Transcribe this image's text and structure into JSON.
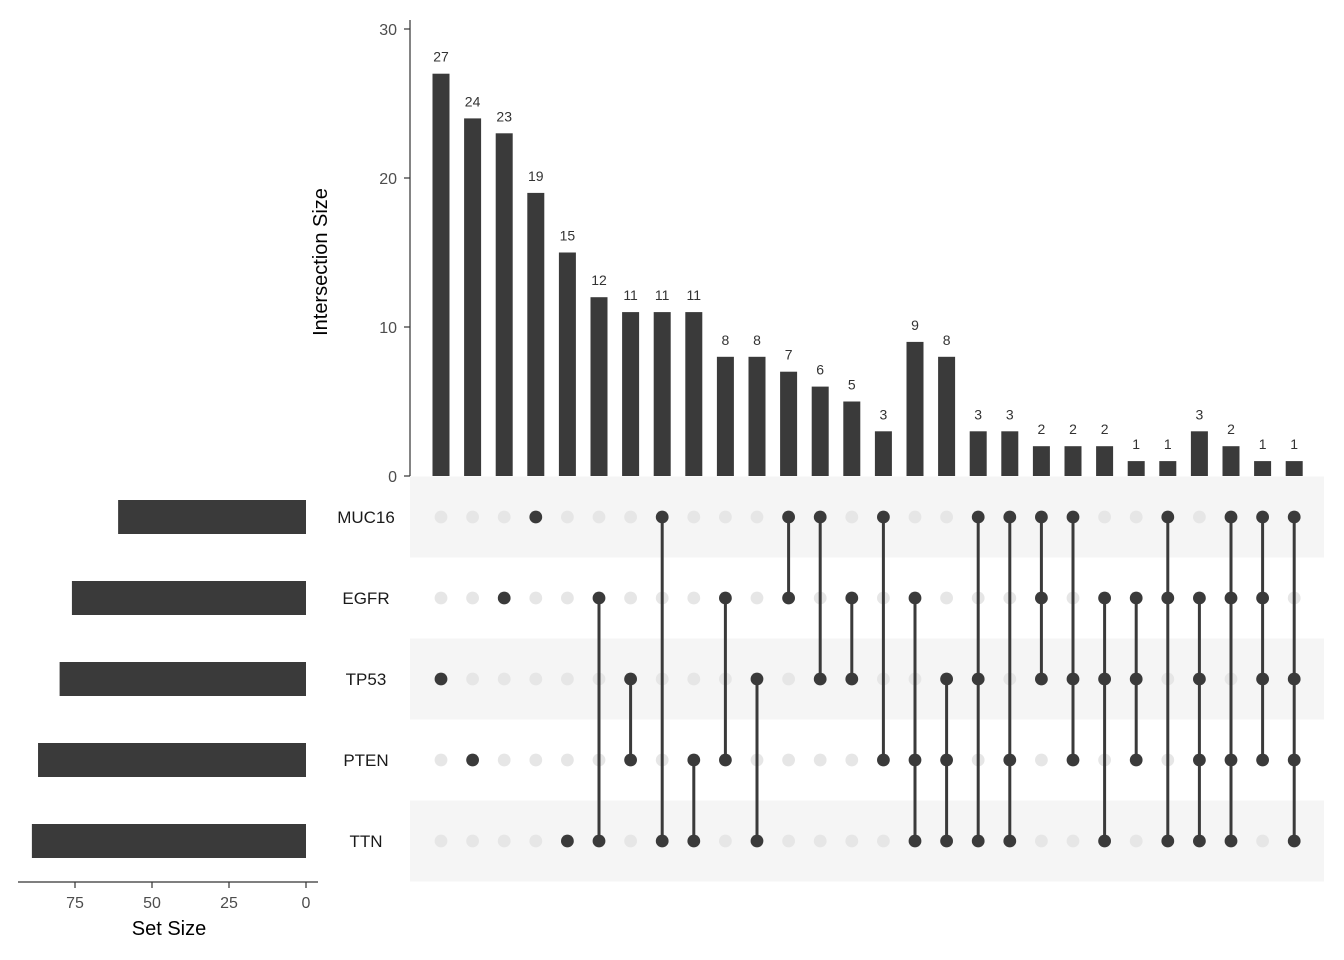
{
  "colors": {
    "bar": "#3a3a3a",
    "dot_active": "#3a3a3a",
    "dot_inactive": "#e6e6e6",
    "stripe": "#f5f5f5",
    "axis": "#333333"
  },
  "chart_data": {
    "type": "upset",
    "ylabel": "Intersection Size",
    "xlabel_sets": "Set Size",
    "y_ticks": [
      "0",
      "10",
      "20",
      "30"
    ],
    "ylim": [
      0,
      30
    ],
    "set_size_ticks": [
      "75",
      "50",
      "25",
      "0"
    ],
    "set_size_lim": [
      0,
      93
    ],
    "sets": [
      {
        "name": "MUC16",
        "size": 61
      },
      {
        "name": "EGFR",
        "size": 76
      },
      {
        "name": "TP53",
        "size": 80
      },
      {
        "name": "PTEN",
        "size": 87
      },
      {
        "name": "TTN",
        "size": 89
      }
    ],
    "intersections": [
      {
        "size": 27,
        "sets": [
          "TP53"
        ]
      },
      {
        "size": 24,
        "sets": [
          "PTEN"
        ]
      },
      {
        "size": 23,
        "sets": [
          "EGFR"
        ]
      },
      {
        "size": 19,
        "sets": [
          "MUC16"
        ]
      },
      {
        "size": 15,
        "sets": [
          "TTN"
        ]
      },
      {
        "size": 12,
        "sets": [
          "EGFR",
          "TTN"
        ]
      },
      {
        "size": 11,
        "sets": [
          "TP53",
          "PTEN"
        ]
      },
      {
        "size": 11,
        "sets": [
          "MUC16",
          "TTN"
        ]
      },
      {
        "size": 11,
        "sets": [
          "PTEN",
          "TTN"
        ]
      },
      {
        "size": 8,
        "sets": [
          "EGFR",
          "PTEN"
        ]
      },
      {
        "size": 8,
        "sets": [
          "TP53",
          "TTN"
        ]
      },
      {
        "size": 7,
        "sets": [
          "MUC16",
          "EGFR"
        ]
      },
      {
        "size": 6,
        "sets": [
          "MUC16",
          "TP53"
        ]
      },
      {
        "size": 5,
        "sets": [
          "EGFR",
          "TP53"
        ]
      },
      {
        "size": 3,
        "sets": [
          "MUC16",
          "PTEN"
        ]
      },
      {
        "size": 9,
        "sets": [
          "EGFR",
          "PTEN",
          "TTN"
        ]
      },
      {
        "size": 8,
        "sets": [
          "TP53",
          "PTEN",
          "TTN"
        ]
      },
      {
        "size": 3,
        "sets": [
          "MUC16",
          "TP53",
          "TTN"
        ]
      },
      {
        "size": 3,
        "sets": [
          "MUC16",
          "PTEN",
          "TTN"
        ]
      },
      {
        "size": 2,
        "sets": [
          "MUC16",
          "EGFR",
          "TP53"
        ]
      },
      {
        "size": 2,
        "sets": [
          "MUC16",
          "TP53",
          "PTEN"
        ]
      },
      {
        "size": 2,
        "sets": [
          "EGFR",
          "TP53",
          "TTN"
        ]
      },
      {
        "size": 1,
        "sets": [
          "EGFR",
          "TP53",
          "PTEN"
        ]
      },
      {
        "size": 1,
        "sets": [
          "MUC16",
          "EGFR",
          "TTN"
        ]
      },
      {
        "size": 3,
        "sets": [
          "EGFR",
          "TP53",
          "PTEN",
          "TTN"
        ]
      },
      {
        "size": 2,
        "sets": [
          "MUC16",
          "EGFR",
          "PTEN",
          "TTN"
        ]
      },
      {
        "size": 1,
        "sets": [
          "MUC16",
          "EGFR",
          "TP53",
          "PTEN"
        ]
      },
      {
        "size": 1,
        "sets": [
          "MUC16",
          "TP53",
          "PTEN",
          "TTN"
        ]
      }
    ]
  }
}
